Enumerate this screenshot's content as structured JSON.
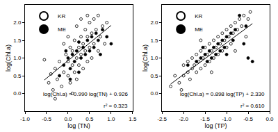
{
  "chart_data": [
    {
      "type": "scatter",
      "x_label": "log (TN)",
      "y_label": "log(Chl.a)",
      "xlim": [
        -1.0,
        1.5
      ],
      "xticks": [
        {
          "value": -1.0,
          "label": "-1.0"
        },
        {
          "value": -0.5,
          "label": "-0.5"
        },
        {
          "value": 0.0,
          "label": "0.0"
        },
        {
          "value": 0.5,
          "label": "0.5"
        },
        {
          "value": 1.0,
          "label": "1.0"
        },
        {
          "value": 1.5,
          "label": "1.5"
        }
      ],
      "ylim": [
        -0.5,
        2.5
      ],
      "yticks": [
        {
          "value": 0.0,
          "label": "0.0"
        },
        {
          "value": 0.5,
          "label": "0.5"
        },
        {
          "value": 1.0,
          "label": "1.0"
        },
        {
          "value": 1.5,
          "label": "1.5"
        },
        {
          "value": 2.0,
          "label": "2.0"
        }
      ],
      "grid": false,
      "legend": "upper left",
      "annotations": [
        "log(Chl.a) = 0.990 log(TN) + 0.926",
        "r² = 0.323"
      ],
      "series": [
        {
          "name": "KR",
          "color": "#000000",
          "marker": "open",
          "x": [
            -0.55,
            -0.45,
            -0.4,
            -0.35,
            -0.3,
            -0.25,
            -0.2,
            -0.15,
            -0.1,
            -0.05,
            0.0,
            0.0,
            0.05,
            0.05,
            0.1,
            0.1,
            0.15,
            0.15,
            0.2,
            0.2,
            0.25,
            0.25,
            0.3,
            0.3,
            0.35,
            0.35,
            0.4,
            0.4,
            0.45,
            0.45,
            0.5,
            0.5,
            0.55,
            0.55,
            0.6,
            0.6,
            0.65,
            0.7,
            0.7,
            0.75,
            0.8,
            0.85,
            0.9,
            -0.3,
            0.1,
            0.3,
            0.0,
            -0.1,
            0.2,
            0.45
          ],
          "values": [
            0.95,
            0.3,
            0.55,
            0.1,
            0.7,
            0.4,
            0.9,
            0.2,
            0.6,
            1.1,
            0.5,
            0.9,
            1.3,
            0.3,
            0.8,
            1.2,
            0.6,
            1.5,
            1.0,
            0.4,
            1.3,
            0.8,
            1.6,
            1.1,
            0.7,
            1.4,
            1.8,
            1.2,
            0.9,
            1.6,
            2.0,
            1.3,
            1.0,
            1.7,
            2.1,
            1.4,
            1.8,
            1.2,
            2.2,
            1.6,
            1.9,
            1.4,
            2.0,
            -0.15,
            0.0,
            2.1,
            1.6,
            1.4,
            1.9,
            2.2
          ]
        },
        {
          "name": "ME",
          "color": "#000000",
          "marker": "filled",
          "x": [
            -0.2,
            -0.1,
            0.0,
            0.05,
            0.1,
            0.15,
            0.2,
            0.25,
            0.3,
            0.35,
            0.4,
            0.45,
            0.5,
            0.55,
            0.6,
            0.65,
            0.7,
            0.75,
            0.8,
            0.9,
            1.0,
            0.25,
            0.05,
            -0.05
          ],
          "values": [
            0.5,
            0.8,
            1.0,
            0.7,
            1.1,
            0.9,
            1.2,
            0.6,
            1.0,
            1.3,
            1.1,
            1.5,
            1.2,
            1.6,
            1.3,
            1.7,
            1.5,
            1.1,
            1.8,
            1.6,
            1.4,
            1.45,
            0.4,
            1.2
          ]
        },
        {
          "type": "line",
          "color": "#000000",
          "x": [
            -0.55,
            1.0
          ],
          "values": [
            0.38,
            1.92
          ]
        }
      ]
    },
    {
      "type": "scatter",
      "x_label": "log (TP)",
      "y_label": "log(Chl.a)",
      "xlim": [
        -2.5,
        0.0
      ],
      "xticks": [
        {
          "value": -2.5,
          "label": "-2.5"
        },
        {
          "value": -2.0,
          "label": "-2.0"
        },
        {
          "value": -1.5,
          "label": "-1.5"
        },
        {
          "value": -1.0,
          "label": "-1.0"
        },
        {
          "value": -0.5,
          "label": "-0.5"
        },
        {
          "value": 0.0,
          "label": "0.0"
        }
      ],
      "ylim": [
        -0.5,
        2.5
      ],
      "yticks": [
        {
          "value": 0.0,
          "label": "0.0"
        },
        {
          "value": 0.5,
          "label": "0.5"
        },
        {
          "value": 1.0,
          "label": "1.0"
        },
        {
          "value": 1.5,
          "label": "1.5"
        },
        {
          "value": 2.0,
          "label": "2.0"
        }
      ],
      "grid": false,
      "legend": "upper left",
      "annotations": [
        "log(Chl.a) = 0.898 log(TP) + 2.330",
        "r² = 0.610"
      ],
      "series": [
        {
          "name": "KR",
          "color": "#000000",
          "marker": "open",
          "x": [
            -2.3,
            -2.2,
            -2.1,
            -2.0,
            -2.0,
            -1.9,
            -1.9,
            -1.85,
            -1.8,
            -1.8,
            -1.75,
            -1.7,
            -1.7,
            -1.65,
            -1.6,
            -1.6,
            -1.55,
            -1.5,
            -1.5,
            -1.45,
            -1.4,
            -1.4,
            -1.35,
            -1.3,
            -1.3,
            -1.25,
            -1.2,
            -1.2,
            -1.15,
            -1.1,
            -1.1,
            -1.05,
            -1.0,
            -1.0,
            -0.95,
            -0.9,
            -0.9,
            -0.85,
            -0.8,
            -0.75,
            -0.7,
            -0.65,
            -0.6,
            -0.5,
            -0.45,
            -0.55,
            -1.6,
            -2.05,
            -1.35,
            -0.8
          ],
          "values": [
            0.2,
            0.5,
            0.3,
            0.5,
            0.8,
            0.6,
            0.9,
            0.4,
            0.7,
            1.0,
            0.8,
            0.6,
            1.1,
            0.9,
            0.7,
            1.2,
            1.0,
            0.8,
            1.3,
            1.1,
            0.9,
            1.4,
            1.2,
            1.0,
            1.5,
            1.3,
            1.1,
            1.6,
            1.4,
            1.2,
            1.7,
            1.5,
            1.3,
            1.8,
            1.6,
            1.4,
            1.9,
            1.7,
            2.0,
            1.8,
            2.1,
            1.9,
            2.2,
            2.1,
            2.3,
            1.6,
            1.5,
            0.1,
            0.6,
            1.2
          ]
        },
        {
          "name": "ME",
          "color": "#000000",
          "marker": "filled",
          "x": [
            -1.9,
            -1.7,
            -1.6,
            -1.5,
            -1.45,
            -1.4,
            -1.35,
            -1.3,
            -1.25,
            -1.2,
            -1.15,
            -1.1,
            -1.05,
            -1.0,
            -0.9,
            -0.85,
            -0.8,
            -0.7,
            -0.6,
            -0.5,
            -0.4,
            -0.55,
            -1.55,
            -1.0
          ],
          "values": [
            0.8,
            0.9,
            1.0,
            1.1,
            0.9,
            1.2,
            1.0,
            1.3,
            1.1,
            1.4,
            1.2,
            1.5,
            1.3,
            1.6,
            1.7,
            1.5,
            1.8,
            2.2,
            1.4,
            1.0,
            0.9,
            1.9,
            1.3,
            1.1
          ]
        },
        {
          "type": "line",
          "color": "#000000",
          "x": [
            -2.3,
            -0.4
          ],
          "values": [
            0.265,
            1.97
          ]
        }
      ]
    }
  ]
}
